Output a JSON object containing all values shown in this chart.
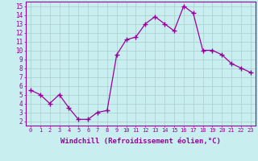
{
  "x": [
    0,
    1,
    2,
    3,
    4,
    5,
    6,
    7,
    8,
    9,
    10,
    11,
    12,
    13,
    14,
    15,
    16,
    17,
    18,
    19,
    20,
    21,
    22,
    23
  ],
  "y": [
    5.5,
    5.0,
    4.0,
    5.0,
    3.5,
    2.2,
    2.2,
    3.0,
    3.2,
    9.5,
    11.2,
    11.5,
    13.0,
    13.8,
    13.0,
    12.2,
    15.0,
    14.2,
    10.0,
    10.0,
    9.5,
    8.5,
    8.0,
    7.5
  ],
  "line_color": "#990099",
  "marker": "+",
  "markersize": 4,
  "linewidth": 0.9,
  "bg_color": "#c8eef0",
  "grid_color": "#aacccc",
  "xlabel": "Windchill (Refroidissement éolien,°C)",
  "xlim": [
    -0.5,
    23.5
  ],
  "ylim": [
    1.5,
    15.5
  ],
  "yticks": [
    2,
    3,
    4,
    5,
    6,
    7,
    8,
    9,
    10,
    11,
    12,
    13,
    14,
    15
  ],
  "xticks": [
    0,
    1,
    2,
    3,
    4,
    5,
    6,
    7,
    8,
    9,
    10,
    11,
    12,
    13,
    14,
    15,
    16,
    17,
    18,
    19,
    20,
    21,
    22,
    23
  ],
  "tick_color": "#990099",
  "label_color": "#990099",
  "spine_color": "#990099",
  "xlabel_fontsize": 6.5,
  "ytick_fontsize": 5.5,
  "xtick_fontsize": 5.0
}
